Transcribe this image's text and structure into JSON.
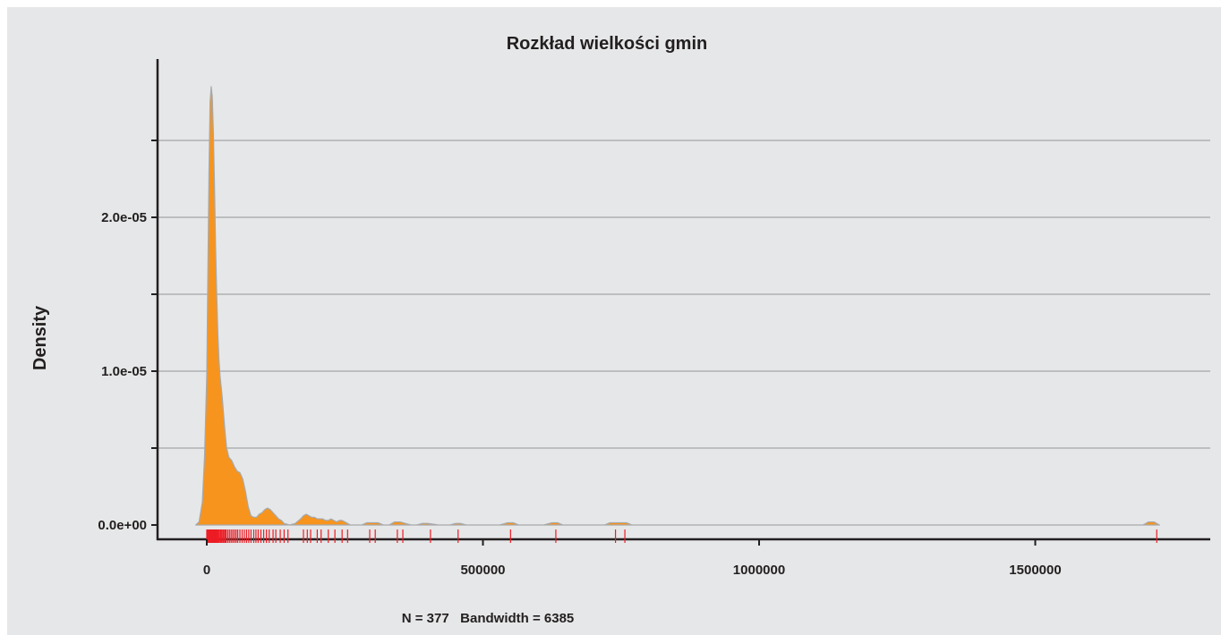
{
  "chart_data": {
    "type": "area",
    "title": "Rozkład wielkości gmin",
    "xlabel": "N = 377   Bandwidth = 6385",
    "ylabel": "Density",
    "xlim": [
      -100000,
      1800000
    ],
    "ylim": [
      0,
      2.87e-05
    ],
    "x_ticks": [
      0,
      500000,
      1000000,
      1500000
    ],
    "x_tick_labels": [
      "0",
      "500000",
      "1000000",
      "1500000"
    ],
    "y_ticks": [
      0,
      5e-06,
      1e-05,
      1.5e-05,
      2e-05,
      2.5e-05
    ],
    "y_tick_labels": [
      "0.0e+00",
      "",
      "1.0e-05",
      "",
      "2.0e-05",
      ""
    ],
    "grid": true,
    "colors": {
      "fill": "#f7941d",
      "outline": "#a7a9ac",
      "rug": "#ed1c24",
      "axis": "#231f20",
      "grid": "#939598",
      "background": "#e6e7e8"
    },
    "series": [
      {
        "x": [
          -20000,
          -14000,
          -8000,
          -4000,
          0,
          2000,
          4000,
          6000,
          8000,
          10000,
          12000,
          14000,
          16000,
          18000,
          20000,
          22000,
          24000,
          26000,
          28000,
          30000,
          32000,
          34000,
          36000,
          40000,
          45000,
          50000,
          55000,
          60000,
          65000,
          70000,
          75000,
          80000,
          85000,
          90000,
          95000,
          100000,
          105000,
          110000,
          115000,
          120000,
          125000,
          130000,
          135000,
          140000,
          145000,
          150000,
          160000,
          170000,
          175000,
          180000,
          185000,
          190000,
          195000,
          200000,
          205000,
          210000,
          215000,
          220000,
          225000,
          230000,
          235000,
          240000,
          245000,
          250000,
          255000,
          260000,
          280000,
          290000,
          300000,
          310000,
          320000,
          330000,
          340000,
          350000,
          360000,
          370000,
          380000,
          390000,
          400000,
          410000,
          420000,
          440000,
          450000,
          460000,
          470000,
          530000,
          545000,
          555000,
          565000,
          610000,
          625000,
          635000,
          645000,
          720000,
          730000,
          740000,
          750000,
          760000,
          770000,
          1695000,
          1705000,
          1715000,
          1725000
        ],
        "y": [
          0,
          2e-07,
          1.5e-06,
          4.5e-06,
          9.8e-06,
          1.65e-05,
          2.3e-05,
          2.75e-05,
          2.85e-05,
          2.78e-05,
          2.55e-05,
          2.2e-05,
          1.8e-05,
          1.5e-05,
          1.25e-05,
          1.08e-05,
          9.7e-06,
          9e-06,
          8.3e-06,
          7.4e-06,
          6.5e-06,
          5.7e-06,
          5e-06,
          4.4e-06,
          4.2e-06,
          3.8e-06,
          3.5e-06,
          3.4e-06,
          3e-06,
          2.2e-06,
          1.2e-06,
          6e-07,
          5e-07,
          5e-07,
          7e-07,
          8e-07,
          1e-06,
          1.1e-06,
          1e-06,
          8e-07,
          6e-07,
          4e-07,
          3e-07,
          1e-07,
          5e-08,
          0,
          1e-07,
          4e-07,
          6e-07,
          7e-07,
          6e-07,
          5e-07,
          5e-07,
          4e-07,
          4e-07,
          4e-07,
          3e-07,
          3e-07,
          4e-07,
          3e-07,
          2e-07,
          3e-07,
          3e-07,
          2e-07,
          1e-07,
          0,
          0,
          1.5e-07,
          1.5e-07,
          1.5e-07,
          0,
          0,
          2e-07,
          2e-07,
          1e-07,
          0,
          0,
          1e-07,
          1e-07,
          5e-08,
          0,
          0,
          1e-07,
          1e-07,
          0,
          0,
          1.5e-07,
          1.5e-07,
          0,
          0,
          1.5e-07,
          1.5e-07,
          0,
          0,
          1.5e-07,
          1.5e-07,
          1.5e-07,
          1.5e-07,
          0,
          0,
          2e-07,
          2e-07,
          0
        ]
      }
    ],
    "rug": [
      0,
      1000,
      2000,
      3500,
      5000,
      6000,
      7000,
      8000,
      9000,
      10000,
      11000,
      12000,
      13000,
      14000,
      15000,
      16000,
      17000,
      18000,
      19000,
      20000,
      21500,
      23000,
      25000,
      27000,
      29000,
      31000,
      33000,
      35000,
      38000,
      41000,
      44000,
      47000,
      50000,
      53000,
      56000,
      60000,
      64000,
      68000,
      72000,
      76000,
      80000,
      85000,
      89000,
      93000,
      98000,
      103000,
      108000,
      113000,
      120000,
      125000,
      133000,
      140000,
      147000,
      175000,
      182000,
      188000,
      200000,
      207000,
      220000,
      232000,
      245000,
      255000,
      295000,
      305000,
      345000,
      355000,
      405000,
      455000,
      550000,
      632000,
      740000,
      757000,
      1720000
    ]
  }
}
